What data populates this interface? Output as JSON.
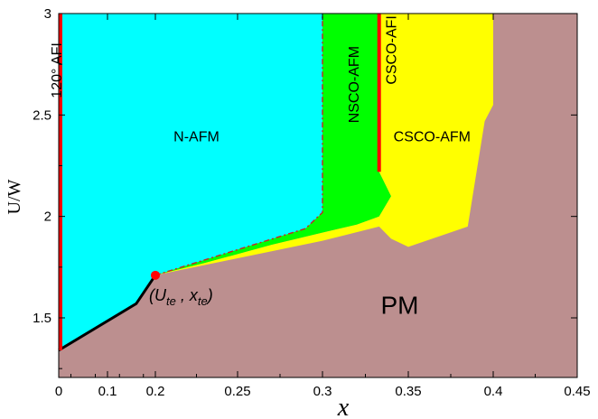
{
  "chart_data": {
    "type": "area",
    "title": "",
    "xlabel": "x",
    "ylabel": "U/W",
    "x_ticks": [
      {
        "value": 0,
        "label": "0"
      },
      {
        "value": 0.1,
        "label": "0.1"
      },
      {
        "value": 0.2,
        "label": "0.2"
      },
      {
        "value": 0.25,
        "label": "0.25"
      },
      {
        "value": 0.3,
        "label": "0.3"
      },
      {
        "value": 0.35,
        "label": "0.35"
      },
      {
        "value": 0.4,
        "label": "0.4"
      },
      {
        "value": 0.45,
        "label": "0.45"
      }
    ],
    "y_ticks": [
      {
        "value": 1.5,
        "label": "1.5"
      },
      {
        "value": 2,
        "label": "2"
      },
      {
        "value": 2.5,
        "label": "2.5"
      },
      {
        "value": 3,
        "label": "3"
      }
    ],
    "ylim": [
      1.25,
      3.0
    ],
    "grid": false,
    "colors": {
      "PM": "#bc8f8f",
      "N-AFM": "#00ffff",
      "NSCO-AFM": "#00ff00",
      "CSCO-AFM": "#ffff00",
      "phase_line": "#ff0000",
      "boundary": "#000000"
    },
    "regions": [
      {
        "name": "N-AFM",
        "label": "N-AFM",
        "label_at": {
          "x": 0.225,
          "y": 2.37
        },
        "label_size": 16,
        "points": [
          [
            0,
            1.34
          ],
          [
            0.16,
            1.57
          ],
          [
            0.2,
            1.71
          ],
          [
            0.29,
            1.94
          ],
          [
            0.3,
            2.02
          ],
          [
            0.3,
            3.0
          ],
          [
            0,
            3.0
          ]
        ]
      },
      {
        "name": "NSCO-AFM",
        "label": "NSCO-AFM",
        "label_at": {
          "x": 0.321,
          "y": 2.65
        },
        "label_size": 16,
        "rotate": -90,
        "points": [
          [
            0.2,
            1.71
          ],
          [
            0.29,
            1.94
          ],
          [
            0.3,
            2.02
          ],
          [
            0.3,
            3.0
          ],
          [
            0.333,
            3.0
          ],
          [
            0.333,
            2.22
          ],
          [
            0.34,
            2.1
          ],
          [
            0.333,
            2.0
          ],
          [
            0.32,
            1.96
          ],
          [
            0.3,
            1.92
          ],
          [
            0.27,
            1.86
          ],
          [
            0.23,
            1.77
          ]
        ]
      },
      {
        "name": "CSCO-AFM",
        "label": "CSCO-AFM",
        "label_at": {
          "x": 0.364,
          "y": 2.37
        },
        "label_size": 16,
        "points": [
          [
            0.333,
            3.0
          ],
          [
            0.4,
            3.0
          ],
          [
            0.4,
            2.55
          ],
          [
            0.395,
            2.47
          ],
          [
            0.385,
            1.95
          ],
          [
            0.35,
            1.85
          ],
          [
            0.34,
            1.89
          ],
          [
            0.333,
            1.95
          ],
          [
            0.3,
            1.88
          ],
          [
            0.2,
            1.71
          ],
          [
            0.23,
            1.77
          ],
          [
            0.27,
            1.86
          ],
          [
            0.3,
            1.92
          ],
          [
            0.32,
            1.96
          ],
          [
            0.333,
            2.0
          ],
          [
            0.34,
            2.1
          ],
          [
            0.333,
            2.22
          ]
        ]
      },
      {
        "name": "PM",
        "label": "PM",
        "label_at": {
          "x": 0.345,
          "y": 1.52
        },
        "label_size": 28,
        "points": []
      }
    ],
    "phase_lines": [
      {
        "name": "120-deg-AFI-line",
        "x": 0.0,
        "y0": 1.34,
        "y1": 3.0,
        "label": "120° AFI",
        "label_at": {
          "x": 0.006,
          "y": 2.72
        }
      },
      {
        "name": "CSCO-AFI-line",
        "x": 0.333,
        "y0": 2.22,
        "y1": 3.0,
        "label": "CSCO-AFI",
        "label_at": {
          "x": 0.343,
          "y": 2.82
        }
      }
    ],
    "dashed_boundary": [
      [
        0.2,
        1.71
      ],
      [
        0.29,
        1.94
      ],
      [
        0.3,
        2.02
      ],
      [
        0.3,
        3.0
      ]
    ],
    "solid_boundary": [
      [
        0,
        1.34
      ],
      [
        0.16,
        1.57
      ],
      [
        0.2,
        1.71
      ]
    ],
    "critical_point": {
      "x": 0.2,
      "y": 1.71,
      "label_main_1": "(U",
      "label_sub_1": "te",
      "label_mid": " , x",
      "label_sub_2": "te",
      "label_end": ")"
    }
  }
}
